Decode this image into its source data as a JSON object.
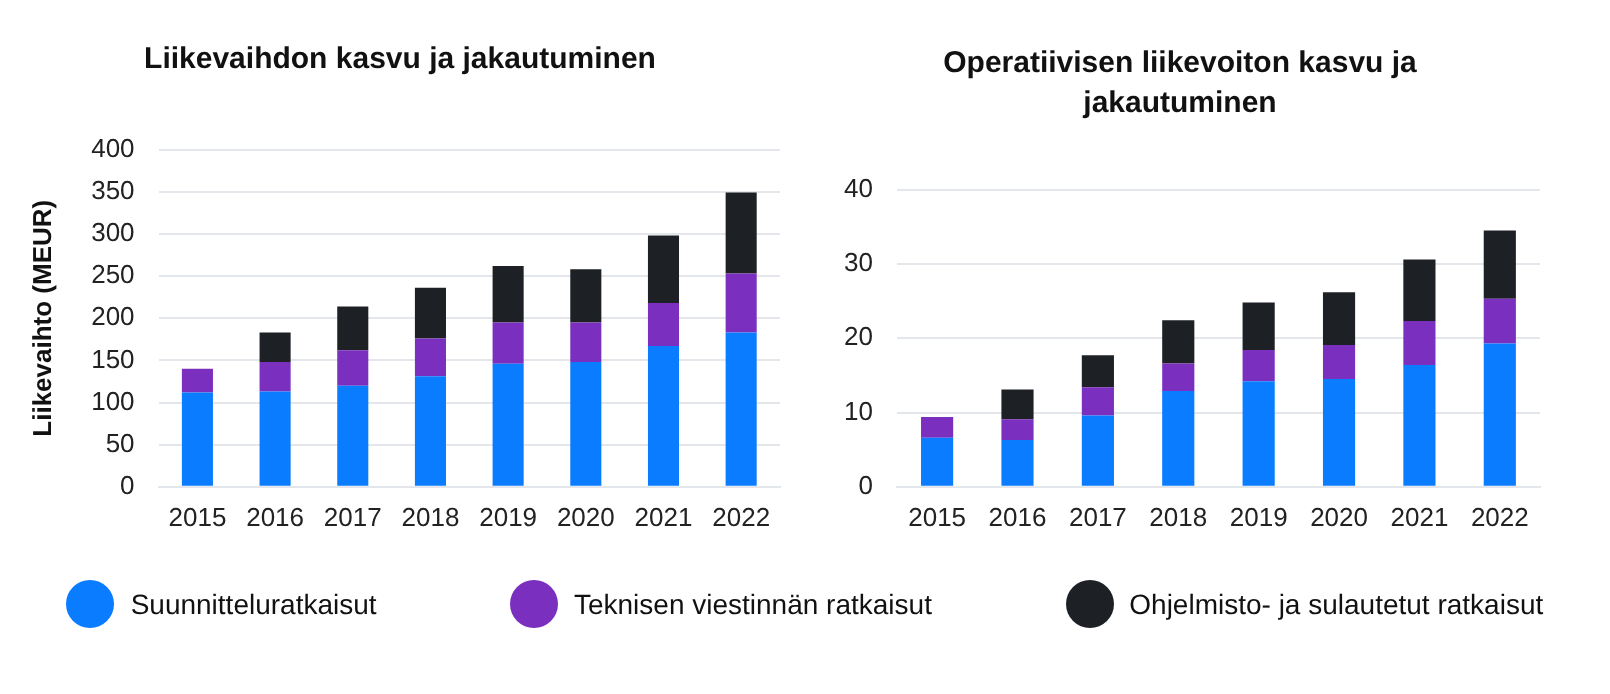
{
  "chart_data": [
    {
      "type": "bar",
      "title": "Liikevaihdon kasvu ja jakautuminen",
      "ylabel": "Liikevaihto (MEUR)",
      "stacked": true,
      "grid": "y",
      "legend": "bottom",
      "categories": [
        "2015",
        "2016",
        "2017",
        "2018",
        "2019",
        "2020",
        "2021",
        "2022"
      ],
      "ylim": [
        0,
        400
      ],
      "yticks": [
        0,
        50,
        100,
        150,
        200,
        250,
        300,
        350,
        400
      ],
      "series": [
        {
          "name": "Suunnitteluratkaisut",
          "color": "#0a7cff",
          "values": [
            112,
            113,
            120,
            131,
            146,
            148,
            167,
            183
          ]
        },
        {
          "name": "Teknisen viestinnän ratkaisut",
          "color": "#7a2fbf",
          "values": [
            28,
            35,
            42,
            45,
            49,
            47,
            51,
            70
          ]
        },
        {
          "name": "Ohjelmisto- ja sulautetut ratkaisut",
          "color": "#1d2126",
          "values": [
            0,
            35,
            52,
            60,
            67,
            63,
            80,
            96
          ]
        }
      ]
    },
    {
      "type": "bar",
      "title": "Operatiivisen liikevoiton kasvu ja jakautuminen",
      "stacked": true,
      "grid": "y",
      "categories": [
        "2015",
        "2016",
        "2017",
        "2018",
        "2019",
        "2020",
        "2021",
        "2022"
      ],
      "ylim": [
        0,
        40
      ],
      "yticks": [
        0,
        10,
        20,
        30,
        40
      ],
      "series": [
        {
          "color": "#0a7cff",
          "values": [
            6.6,
            6.3,
            9.6,
            12.9,
            14.2,
            14.5,
            16.4,
            19.3
          ]
        },
        {
          "color": "#7a2fbf",
          "values": [
            2.8,
            2.8,
            3.8,
            3.7,
            4.2,
            4.6,
            5.9,
            6.0
          ]
        },
        {
          "color": "#1d2126",
          "values": [
            0,
            4.0,
            4.3,
            5.8,
            6.4,
            7.1,
            8.3,
            9.2
          ]
        }
      ]
    }
  ]
}
